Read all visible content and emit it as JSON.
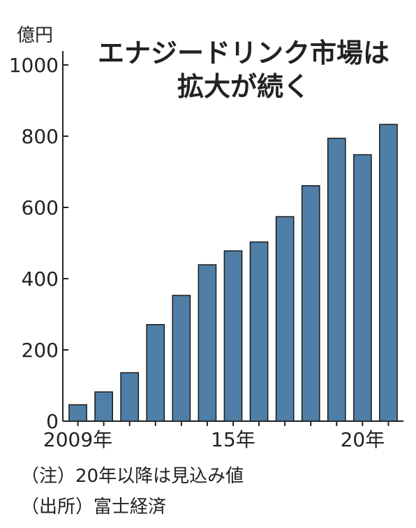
{
  "chart_data": {
    "type": "bar",
    "title_line1": "エナジードリンク市場は",
    "title_line2": "拡大が続く",
    "unit": "億円",
    "ylim": [
      0,
      1000
    ],
    "yticks": [
      0,
      200,
      400,
      600,
      800,
      1000
    ],
    "categories": [
      "2009",
      "2010",
      "2011",
      "2012",
      "2013",
      "2014",
      "2015",
      "2016",
      "2017",
      "2018",
      "2019",
      "2020",
      "2021"
    ],
    "x_tick_labels": {
      "2009": "2009年",
      "2015": "15年",
      "2020": "20年"
    },
    "values": [
      46,
      82,
      136,
      271,
      353,
      439,
      478,
      503,
      574,
      661,
      794,
      748,
      833
    ],
    "bar_color": "#4f7fa6",
    "grid": false,
    "legend": "none"
  },
  "notes": {
    "note": "（注）20年以降は見込み値",
    "source": "（出所）富士経済"
  }
}
